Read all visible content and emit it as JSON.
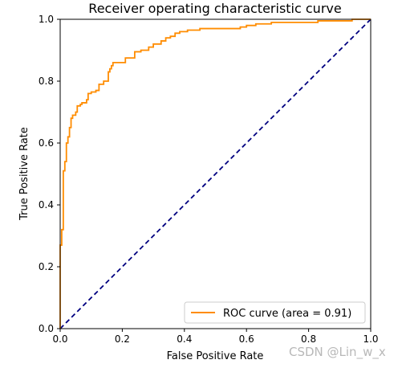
{
  "chart_data": {
    "type": "line",
    "title": "Receiver operating characteristic curve",
    "xlabel": "False Positive Rate",
    "ylabel": "True Positive Rate",
    "xlim": [
      0.0,
      1.0
    ],
    "ylim": [
      0.0,
      1.0
    ],
    "xticks": [
      "0.0",
      "0.2",
      "0.4",
      "0.6",
      "0.8",
      "1.0"
    ],
    "yticks": [
      "0.0",
      "0.2",
      "0.4",
      "0.6",
      "0.8",
      "1.0"
    ],
    "grid": false,
    "legend_position": "lower right",
    "series": [
      {
        "name": "ROC curve (area = 0.91)",
        "color": "#ff8c00",
        "style": "solid step",
        "x": [
          0.0,
          0.0,
          0.005,
          0.005,
          0.01,
          0.01,
          0.015,
          0.015,
          0.02,
          0.02,
          0.025,
          0.025,
          0.03,
          0.03,
          0.035,
          0.035,
          0.04,
          0.04,
          0.05,
          0.05,
          0.055,
          0.055,
          0.065,
          0.065,
          0.07,
          0.07,
          0.075,
          0.075,
          0.085,
          0.085,
          0.09,
          0.09,
          0.1,
          0.1,
          0.115,
          0.115,
          0.125,
          0.125,
          0.14,
          0.14,
          0.155,
          0.155,
          0.16,
          0.16,
          0.165,
          0.165,
          0.17,
          0.17,
          0.18,
          0.18,
          0.21,
          0.21,
          0.24,
          0.24,
          0.26,
          0.26,
          0.285,
          0.285,
          0.3,
          0.3,
          0.325,
          0.325,
          0.34,
          0.34,
          0.355,
          0.355,
          0.37,
          0.37,
          0.385,
          0.385,
          0.41,
          0.41,
          0.43,
          0.43,
          0.45,
          0.45,
          0.58,
          0.58,
          0.6,
          0.6,
          0.63,
          0.63,
          0.68,
          0.68,
          0.7,
          0.7,
          0.83,
          0.83,
          0.94,
          0.94,
          1.0
        ],
        "y": [
          0.0,
          0.27,
          0.27,
          0.32,
          0.32,
          0.51,
          0.51,
          0.54,
          0.54,
          0.6,
          0.6,
          0.62,
          0.62,
          0.65,
          0.65,
          0.68,
          0.68,
          0.69,
          0.69,
          0.7,
          0.7,
          0.72,
          0.72,
          0.725,
          0.725,
          0.73,
          0.73,
          0.73,
          0.73,
          0.74,
          0.74,
          0.76,
          0.76,
          0.765,
          0.765,
          0.77,
          0.77,
          0.79,
          0.79,
          0.8,
          0.8,
          0.83,
          0.83,
          0.84,
          0.84,
          0.85,
          0.85,
          0.86,
          0.86,
          0.86,
          0.86,
          0.875,
          0.875,
          0.895,
          0.895,
          0.9,
          0.9,
          0.91,
          0.91,
          0.92,
          0.92,
          0.93,
          0.93,
          0.94,
          0.94,
          0.945,
          0.945,
          0.955,
          0.955,
          0.96,
          0.96,
          0.965,
          0.965,
          0.965,
          0.965,
          0.97,
          0.97,
          0.975,
          0.975,
          0.98,
          0.98,
          0.985,
          0.985,
          0.99,
          0.99,
          0.99,
          0.99,
          0.995,
          0.995,
          1.0,
          1.0
        ]
      },
      {
        "name": "",
        "color": "#000080",
        "style": "dashed",
        "x": [
          0.0,
          1.0
        ],
        "y": [
          0.0,
          1.0
        ]
      }
    ]
  },
  "watermark": "CSDN @Lin_w_x"
}
